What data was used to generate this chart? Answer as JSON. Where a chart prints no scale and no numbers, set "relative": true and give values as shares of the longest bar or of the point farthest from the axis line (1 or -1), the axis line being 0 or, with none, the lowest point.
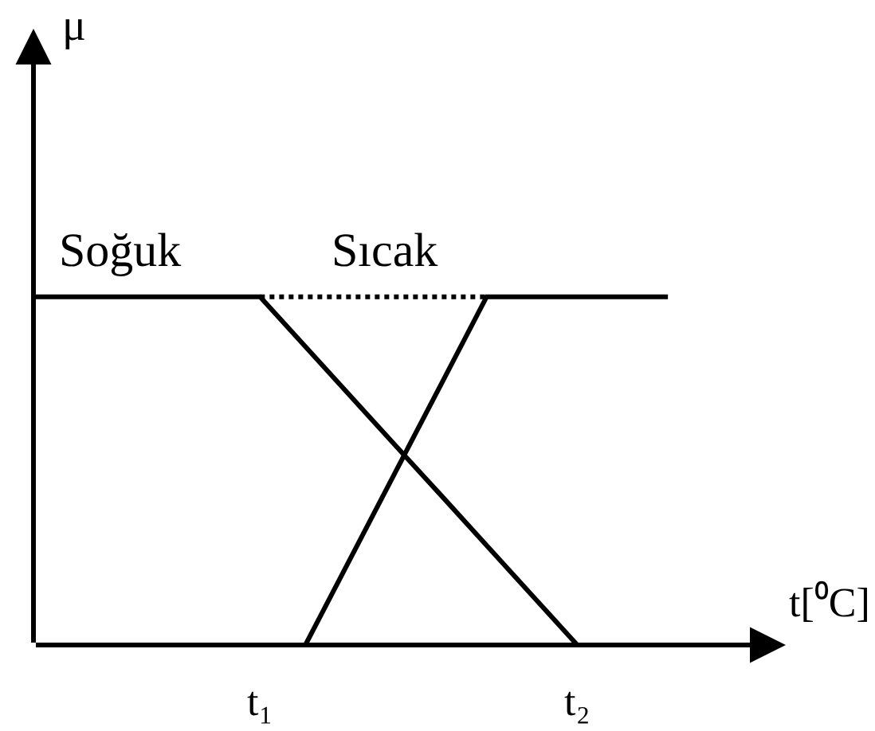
{
  "chart_data": {
    "type": "line",
    "relative": true,
    "xlabel": "t[⁰C]",
    "annotations": [
      "μ"
    ],
    "categories": [
      null,
      null,
      null,
      null,
      null,
      "t₁",
      null,
      null,
      null,
      null,
      null,
      null,
      "t₂",
      null,
      null
    ],
    "tick_labels": "x",
    "line_style": "solid",
    "series": [
      {
        "name": "Soğuk",
        "color": "#000000",
        "values": [
          1,
          1,
          1,
          1,
          1,
          1,
          0.857,
          0.714,
          0.571,
          0.429,
          0.286,
          0.143,
          0,
          null,
          null
        ]
      },
      {
        "name": "Sıcak",
        "color": "#000000",
        "values": [
          null,
          null,
          null,
          null,
          null,
          null,
          0,
          0.25,
          0.5,
          0.75,
          1,
          1,
          1,
          1,
          1
        ]
      },
      {
        "color": "#000000",
        "values": [
          null,
          null,
          null,
          null,
          null,
          1,
          1,
          1,
          1,
          1,
          1,
          null,
          null,
          null,
          null
        ],
        "line_style": "dotted"
      }
    ]
  }
}
